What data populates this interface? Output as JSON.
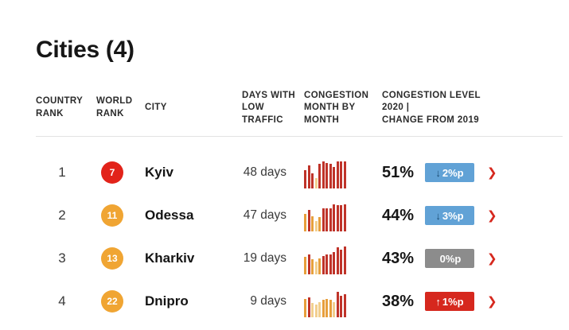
{
  "page": {
    "title": "Cities (4)"
  },
  "icons": {
    "chevron_right": "❯",
    "arrow_down": "↓",
    "arrow_up": "↑"
  },
  "colors": {
    "rank_red": "#e2231a",
    "rank_orange": "#f0a533",
    "change_blue": "#61a2d6",
    "change_gray": "#8c8c8c",
    "change_red": "#d6281e",
    "chevron_red": "#d6281e",
    "bar_red": "#bf3329",
    "bar_orange": "#e79f3c",
    "bar_yellow": "#f2cf8e",
    "arrow_navy": "#1d4d74",
    "arrow_white": "#ffffff"
  },
  "table": {
    "headers": {
      "country_rank": "COUNTRY\nRANK",
      "world_rank": "WORLD\nRANK",
      "city": "CITY",
      "days_low_traffic": "DAYS WITH\nLOW\nTRAFFIC",
      "congestion_month": "CONGESTION\nMONTH BY\nMONTH",
      "congestion_level": "CONGESTION LEVEL\n2020 |\nCHANGE FROM 2019"
    },
    "rows": [
      {
        "country_rank": "1",
        "world_rank": "7",
        "world_rank_color": "#e2231a",
        "city": "Kyiv",
        "days_low_traffic": "48 days",
        "congestion_2020": "51%",
        "change_arrow": "↓",
        "change_arrow_color": "#1d4d74",
        "change_label": "2%p",
        "change_bg": "#61a2d6"
      },
      {
        "country_rank": "2",
        "world_rank": "11",
        "world_rank_color": "#f0a533",
        "city": "Odessa",
        "days_low_traffic": "47 days",
        "congestion_2020": "44%",
        "change_arrow": "↓",
        "change_arrow_color": "#1d4d74",
        "change_label": "3%p",
        "change_bg": "#61a2d6"
      },
      {
        "country_rank": "3",
        "world_rank": "13",
        "world_rank_color": "#f0a533",
        "city": "Kharkiv",
        "days_low_traffic": "19 days",
        "congestion_2020": "43%",
        "change_arrow": "",
        "change_arrow_color": "#ffffff",
        "change_label": "0%p",
        "change_bg": "#8c8c8c"
      },
      {
        "country_rank": "4",
        "world_rank": "22",
        "world_rank_color": "#f0a533",
        "city": "Dnipro",
        "days_low_traffic": "9 days",
        "congestion_2020": "38%",
        "change_arrow": "↑",
        "change_arrow_color": "#ffffff",
        "change_label": "1%p",
        "change_bg": "#d6281e"
      }
    ]
  },
  "chart_data": [
    {
      "type": "bar",
      "title": "Kyiv congestion month by month 2020",
      "values": [
        58,
        73,
        48,
        33,
        78,
        85,
        80,
        77,
        68,
        84,
        86,
        86
      ],
      "bar_colors": [
        "red",
        "red",
        "red",
        "yellow",
        "red",
        "red",
        "red",
        "red",
        "red",
        "red",
        "red",
        "red"
      ],
      "xlabel": "",
      "ylabel": "",
      "ylim": [
        0,
        100
      ]
    },
    {
      "type": "bar",
      "title": "Odessa congestion month by month 2020",
      "values": [
        55,
        68,
        48,
        33,
        45,
        72,
        73,
        72,
        85,
        83,
        83,
        85
      ],
      "bar_colors": [
        "orange",
        "red",
        "orange",
        "yellow",
        "orange",
        "red",
        "red",
        "red",
        "red",
        "red",
        "red",
        "red"
      ],
      "xlabel": "",
      "ylabel": "",
      "ylim": [
        0,
        100
      ]
    },
    {
      "type": "bar",
      "title": "Kharkiv congestion month by month 2020",
      "values": [
        55,
        63,
        48,
        40,
        50,
        58,
        63,
        63,
        70,
        85,
        78,
        88
      ],
      "bar_colors": [
        "orange",
        "red",
        "orange",
        "yellow",
        "orange",
        "red",
        "red",
        "red",
        "red",
        "red",
        "red",
        "red"
      ],
      "xlabel": "",
      "ylabel": "",
      "ylim": [
        0,
        100
      ]
    },
    {
      "type": "bar",
      "title": "Dnipro congestion month by month 2020",
      "values": [
        58,
        63,
        45,
        40,
        48,
        55,
        58,
        55,
        48,
        80,
        68,
        73
      ],
      "bar_colors": [
        "orange",
        "red",
        "yellow",
        "yellow",
        "yellow",
        "orange",
        "orange",
        "orange",
        "yellow",
        "red",
        "red",
        "red"
      ],
      "xlabel": "",
      "ylabel": "",
      "ylim": [
        0,
        100
      ]
    }
  ]
}
